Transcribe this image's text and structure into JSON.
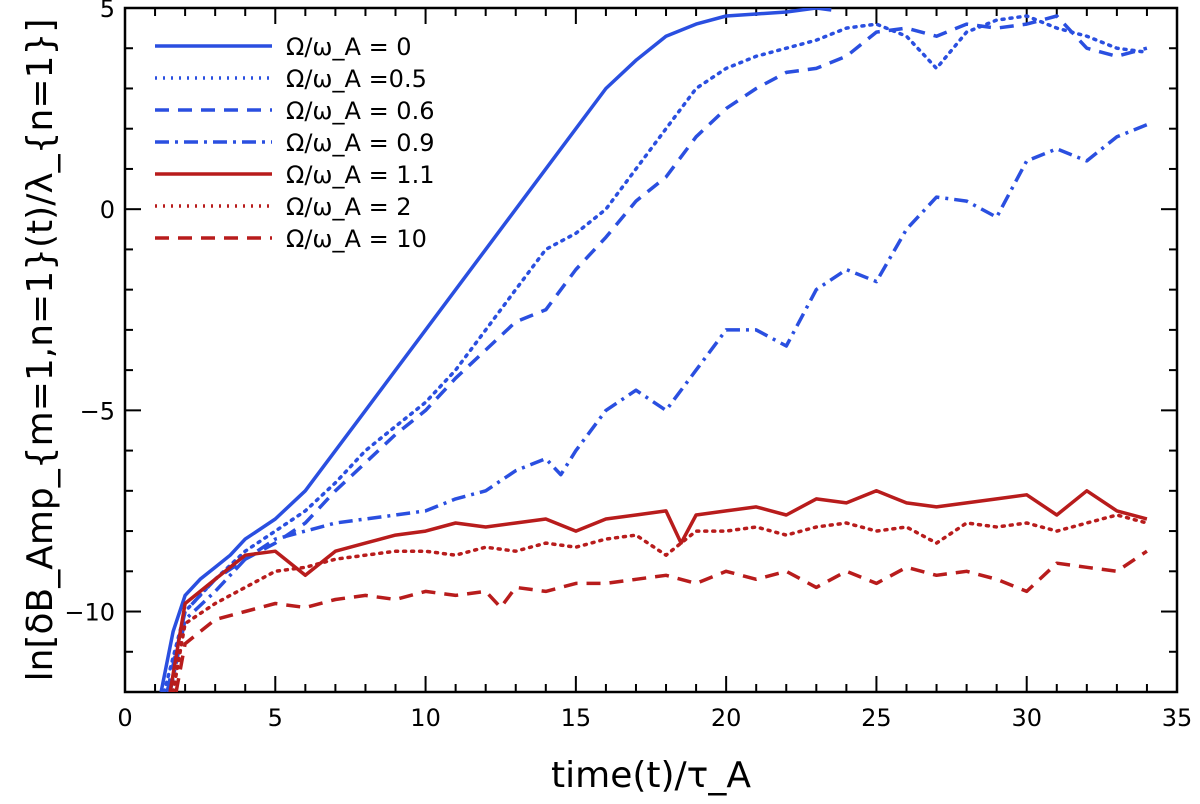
{
  "chart_data": {
    "type": "line",
    "title": "",
    "xlabel": "time(t)/τ_A",
    "ylabel": "ln[δB_Amp_{m=1,n=1}(t)/λ_{n=1}]",
    "xlim": [
      0,
      35
    ],
    "ylim": [
      -12,
      5
    ],
    "xticks": [
      0,
      5,
      10,
      15,
      20,
      25,
      30,
      35
    ],
    "yticks": [
      -10,
      -5,
      0,
      5
    ],
    "grid": false,
    "legend_position": "top-left",
    "series": [
      {
        "name": "Ω/ω_A = 0",
        "color": "#2a4fe0",
        "dash": "solid",
        "x": [
          1.2,
          1.6,
          2.0,
          2.5,
          3.0,
          3.5,
          4.0,
          5.0,
          6.0,
          8.0,
          10.0,
          12.0,
          14.0,
          16.0,
          17.0,
          18.0,
          19.0,
          20.0,
          21.0,
          22.0,
          23.0,
          23.5
        ],
        "y": [
          -12.0,
          -10.5,
          -9.6,
          -9.2,
          -8.9,
          -8.6,
          -8.2,
          -7.7,
          -7.0,
          -5.0,
          -3.0,
          -1.0,
          1.0,
          3.0,
          3.7,
          4.3,
          4.6,
          4.8,
          4.85,
          4.9,
          5.0,
          4.95
        ]
      },
      {
        "name": "Ω/ω_A =0.5",
        "color": "#2a4fe0",
        "dash": "dotted",
        "x": [
          1.3,
          2.0,
          3.0,
          4.0,
          5.0,
          6.0,
          7.0,
          8.0,
          9.0,
          10.0,
          11.0,
          12.0,
          13.0,
          14.0,
          15.0,
          16.0,
          17.0,
          18.0,
          19.0,
          20.0,
          21.0,
          22.0,
          23.0,
          24.0,
          25.0,
          26.0,
          27.0,
          28.0,
          29.0,
          30.0,
          31.0,
          32.0,
          33.0,
          34.0
        ],
        "y": [
          -12.0,
          -10.0,
          -9.2,
          -8.5,
          -8.0,
          -7.5,
          -6.8,
          -6.0,
          -5.4,
          -4.8,
          -4.0,
          -3.0,
          -2.0,
          -1.0,
          -0.6,
          0.0,
          1.0,
          2.0,
          3.0,
          3.5,
          3.8,
          4.0,
          4.2,
          4.5,
          4.6,
          4.3,
          3.5,
          4.4,
          4.7,
          4.8,
          4.5,
          4.3,
          4.0,
          3.9
        ]
      },
      {
        "name": "Ω/ω_A = 0.6",
        "color": "#2a4fe0",
        "dash": "dashed",
        "x": [
          1.4,
          2.0,
          3.0,
          4.0,
          5.0,
          6.0,
          7.0,
          8.0,
          9.0,
          10.0,
          11.0,
          12.0,
          13.0,
          14.0,
          15.0,
          16.0,
          17.0,
          18.0,
          19.0,
          20.0,
          21.0,
          22.0,
          23.0,
          24.0,
          25.0,
          26.0,
          27.0,
          28.0,
          29.0,
          30.0,
          31.0,
          32.0,
          33.0,
          34.0
        ],
        "y": [
          -12.0,
          -10.0,
          -9.2,
          -8.7,
          -8.3,
          -7.8,
          -7.0,
          -6.3,
          -5.6,
          -5.0,
          -4.2,
          -3.5,
          -2.8,
          -2.5,
          -1.5,
          -0.7,
          0.2,
          0.8,
          1.8,
          2.5,
          3.0,
          3.4,
          3.5,
          3.8,
          4.4,
          4.5,
          4.3,
          4.6,
          4.5,
          4.6,
          4.8,
          4.0,
          3.8,
          4.0
        ]
      },
      {
        "name": "Ω/ω_A = 0.9",
        "color": "#2a4fe0",
        "dash": "dashdot",
        "x": [
          1.5,
          2.0,
          3.0,
          4.0,
          5.0,
          6.0,
          7.0,
          8.0,
          9.0,
          10.0,
          11.0,
          12.0,
          13.0,
          14.0,
          14.5,
          15.0,
          16.0,
          17.0,
          18.0,
          19.0,
          20.0,
          21.0,
          22.0,
          23.0,
          24.0,
          25.0,
          26.0,
          27.0,
          28.0,
          29.0,
          30.0,
          31.0,
          32.0,
          33.0,
          34.0
        ],
        "y": [
          -12.0,
          -10.2,
          -9.5,
          -8.7,
          -8.2,
          -8.0,
          -7.8,
          -7.7,
          -7.6,
          -7.5,
          -7.2,
          -7.0,
          -6.5,
          -6.2,
          -6.6,
          -6.0,
          -5.0,
          -4.5,
          -5.0,
          -4.0,
          -3.0,
          -3.0,
          -3.4,
          -2.0,
          -1.5,
          -1.8,
          -0.5,
          0.3,
          0.2,
          -0.2,
          1.2,
          1.5,
          1.2,
          1.8,
          2.1
        ]
      },
      {
        "name": "Ω/ω_A = 1.1",
        "color": "#b81c1c",
        "dash": "solid",
        "x": [
          1.5,
          2.0,
          3.0,
          4.0,
          5.0,
          6.0,
          7.0,
          8.0,
          9.0,
          10.0,
          11.0,
          12.0,
          13.0,
          14.0,
          15.0,
          16.0,
          17.0,
          18.0,
          18.5,
          19.0,
          20.0,
          21.0,
          22.0,
          23.0,
          24.0,
          25.0,
          26.0,
          27.0,
          28.0,
          29.0,
          30.0,
          31.0,
          32.0,
          33.0,
          34.0
        ],
        "y": [
          -12.0,
          -9.8,
          -9.2,
          -8.6,
          -8.5,
          -9.1,
          -8.5,
          -8.3,
          -8.1,
          -8.0,
          -7.8,
          -7.9,
          -7.8,
          -7.7,
          -8.0,
          -7.7,
          -7.6,
          -7.5,
          -8.3,
          -7.6,
          -7.5,
          -7.4,
          -7.6,
          -7.2,
          -7.3,
          -7.0,
          -7.3,
          -7.4,
          -7.3,
          -7.2,
          -7.1,
          -7.6,
          -7.0,
          -7.5,
          -7.7
        ]
      },
      {
        "name": "Ω/ω_A = 2",
        "color": "#b81c1c",
        "dash": "dotted",
        "x": [
          1.6,
          2.0,
          3.0,
          4.0,
          5.0,
          6.0,
          7.0,
          8.0,
          9.0,
          10.0,
          11.0,
          12.0,
          13.0,
          14.0,
          15.0,
          16.0,
          17.0,
          18.0,
          19.0,
          20.0,
          21.0,
          22.0,
          23.0,
          24.0,
          25.0,
          26.0,
          27.0,
          28.0,
          29.0,
          30.0,
          31.0,
          32.0,
          33.0,
          34.0
        ],
        "y": [
          -12.0,
          -10.3,
          -9.8,
          -9.4,
          -9.0,
          -8.9,
          -8.7,
          -8.6,
          -8.5,
          -8.5,
          -8.6,
          -8.4,
          -8.5,
          -8.3,
          -8.4,
          -8.2,
          -8.1,
          -8.6,
          -8.0,
          -8.0,
          -7.9,
          -8.1,
          -7.9,
          -7.8,
          -8.0,
          -7.9,
          -8.3,
          -7.8,
          -7.9,
          -7.8,
          -8.0,
          -7.8,
          -7.6,
          -7.8
        ]
      },
      {
        "name": "Ω/ω_A = 10",
        "color": "#b81c1c",
        "dash": "dashed",
        "x": [
          1.7,
          2.0,
          3.0,
          4.0,
          5.0,
          6.0,
          7.0,
          8.0,
          9.0,
          10.0,
          11.0,
          12.0,
          12.5,
          13.0,
          14.0,
          15.0,
          16.0,
          17.0,
          18.0,
          19.0,
          20.0,
          21.0,
          22.0,
          23.0,
          24.0,
          25.0,
          26.0,
          27.0,
          28.0,
          29.0,
          30.0,
          31.0,
          32.0,
          33.0,
          34.0
        ],
        "y": [
          -12.0,
          -10.8,
          -10.2,
          -10.0,
          -9.8,
          -9.9,
          -9.7,
          -9.6,
          -9.7,
          -9.5,
          -9.6,
          -9.5,
          -9.9,
          -9.4,
          -9.5,
          -9.3,
          -9.3,
          -9.2,
          -9.1,
          -9.3,
          -9.0,
          -9.2,
          -9.0,
          -9.4,
          -9.0,
          -9.3,
          -8.9,
          -9.1,
          -9.0,
          -9.2,
          -9.5,
          -8.8,
          -8.9,
          -9.0,
          -8.5
        ]
      }
    ]
  }
}
